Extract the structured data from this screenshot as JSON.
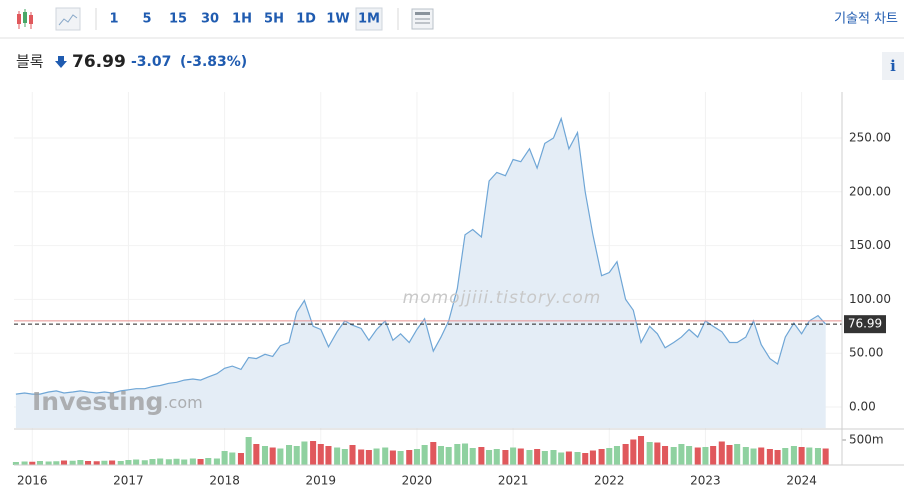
{
  "toolbar": {
    "intervals": [
      "1",
      "5",
      "15",
      "30",
      "1H",
      "5H",
      "1D",
      "1W",
      "1M"
    ],
    "active_interval": 8,
    "technical_chart": "기술적 차트"
  },
  "header": {
    "name": "블록",
    "change": -3.07,
    "change_pct": "(-3.83%)",
    "info": "i"
  },
  "chart_data": {
    "type": "area",
    "watermark": "momojjiii.tistory.com",
    "logo": {
      "main": "Investing",
      "suffix": ".com"
    },
    "current_price": 76.99,
    "reference_line": 80.06,
    "line_color": "#6fa6d6",
    "fill_color": "#e4edf6",
    "grid": true,
    "xlim": [
      2015.81,
      2024.42
    ],
    "xticks": [
      2016,
      2017,
      2018,
      2019,
      2020,
      2021,
      2022,
      2023,
      2024
    ],
    "ylim": [
      -19.5,
      292.75
    ],
    "yticks": [
      {
        "value": 0,
        "label": "0.00"
      },
      {
        "value": 50,
        "label": "50.00"
      },
      {
        "value": 100,
        "label": "100.00"
      },
      {
        "value": 150,
        "label": "150.00"
      },
      {
        "value": 200,
        "label": "200.00"
      },
      {
        "value": 250,
        "label": "250.00"
      }
    ],
    "x": [
      2015.83,
      2015.92,
      2016.0,
      2016.08,
      2016.17,
      2016.25,
      2016.33,
      2016.42,
      2016.5,
      2016.58,
      2016.67,
      2016.75,
      2016.83,
      2016.92,
      2017.0,
      2017.08,
      2017.17,
      2017.25,
      2017.33,
      2017.42,
      2017.5,
      2017.58,
      2017.67,
      2017.75,
      2017.83,
      2017.92,
      2018.0,
      2018.08,
      2018.17,
      2018.25,
      2018.33,
      2018.42,
      2018.5,
      2018.58,
      2018.67,
      2018.75,
      2018.83,
      2018.92,
      2019.0,
      2019.08,
      2019.17,
      2019.25,
      2019.33,
      2019.42,
      2019.5,
      2019.58,
      2019.67,
      2019.75,
      2019.83,
      2019.92,
      2020.0,
      2020.08,
      2020.17,
      2020.25,
      2020.33,
      2020.42,
      2020.5,
      2020.58,
      2020.67,
      2020.75,
      2020.83,
      2020.92,
      2021.0,
      2021.08,
      2021.17,
      2021.25,
      2021.33,
      2021.42,
      2021.5,
      2021.58,
      2021.67,
      2021.75,
      2021.83,
      2021.92,
      2022.0,
      2022.08,
      2022.17,
      2022.25,
      2022.33,
      2022.42,
      2022.5,
      2022.58,
      2022.67,
      2022.75,
      2022.83,
      2022.92,
      2023.0,
      2023.08,
      2023.17,
      2023.25,
      2023.33,
      2023.42,
      2023.5,
      2023.58,
      2023.67,
      2023.75,
      2023.83,
      2023.92,
      2024.0,
      2024.08,
      2024.17,
      2024.25
    ],
    "values": [
      12,
      13,
      12,
      12,
      14,
      15,
      13,
      14,
      15,
      14,
      13,
      14,
      13,
      15,
      16,
      17,
      17,
      19,
      20,
      22,
      23,
      25,
      26,
      25,
      28,
      31,
      36,
      38,
      35,
      46,
      45,
      49,
      47,
      57,
      60,
      88,
      99,
      75,
      72,
      56,
      70,
      80,
      76,
      73,
      62,
      72,
      80,
      62,
      68,
      60,
      72,
      82,
      52,
      65,
      80,
      110,
      160,
      165,
      158,
      210,
      218,
      215,
      230,
      228,
      240,
      222,
      245,
      250,
      268,
      240,
      255,
      200,
      160,
      122,
      125,
      135,
      100,
      90,
      60,
      75,
      68,
      55,
      60,
      65,
      72,
      65,
      80,
      75,
      70,
      60,
      60,
      65,
      80,
      58,
      45,
      40,
      65,
      78,
      68,
      80,
      85,
      76.99
    ],
    "volume": {
      "ylim": [
        0,
        700
      ],
      "yticks": [
        {
          "value": 500,
          "label": "500m"
        }
      ],
      "up_color": "#8fd1a0",
      "down_color": "#e0585c",
      "values": [
        60,
        70,
        65,
        80,
        70,
        75,
        90,
        85,
        100,
        80,
        75,
        85,
        90,
        80,
        100,
        110,
        95,
        120,
        130,
        115,
        125,
        110,
        130,
        120,
        140,
        130,
        280,
        250,
        240,
        560,
        420,
        380,
        350,
        330,
        400,
        380,
        470,
        480,
        420,
        380,
        350,
        320,
        400,
        310,
        300,
        330,
        350,
        290,
        280,
        300,
        320,
        400,
        460,
        380,
        360,
        420,
        430,
        340,
        360,
        300,
        320,
        300,
        350,
        330,
        300,
        320,
        280,
        300,
        250,
        270,
        260,
        240,
        290,
        320,
        340,
        380,
        420,
        510,
        580,
        460,
        450,
        380,
        360,
        420,
        380,
        350,
        360,
        380,
        470,
        400,
        420,
        360,
        330,
        350,
        320,
        300,
        340,
        380,
        360,
        350,
        340,
        330
      ]
    }
  }
}
